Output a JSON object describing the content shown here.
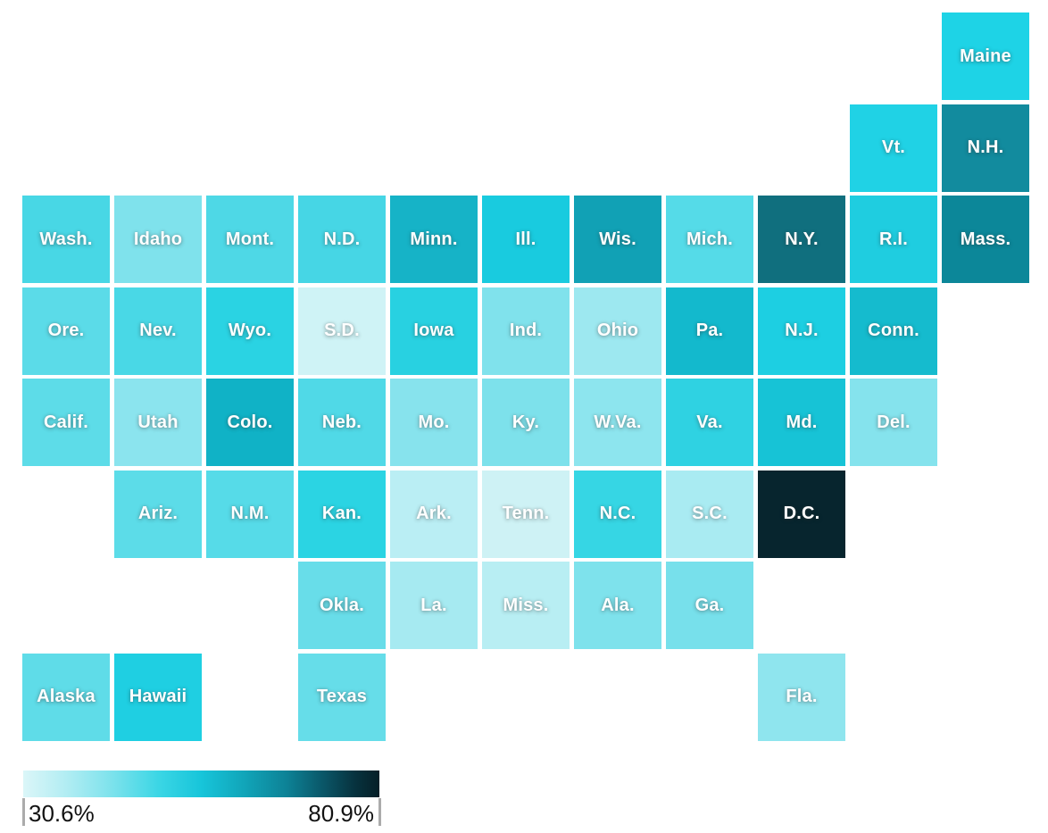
{
  "chart_data": {
    "type": "heatmap",
    "subtype": "us-state-tile-grid-map",
    "title": "",
    "value_encoding": "tile fill color encodes percentage from light (low) to dark (high)",
    "color_scale": {
      "min_label": "30.6%",
      "max_label": "80.9%",
      "gradient_stops": [
        {
          "pos": 0.0,
          "color": "#dbf6f8"
        },
        {
          "pos": 0.12,
          "color": "#b2edf3"
        },
        {
          "pos": 0.25,
          "color": "#7ce2ec"
        },
        {
          "pos": 0.38,
          "color": "#3bd6e5"
        },
        {
          "pos": 0.5,
          "color": "#17c5da"
        },
        {
          "pos": 0.62,
          "color": "#11a5b9"
        },
        {
          "pos": 0.74,
          "color": "#0d8296"
        },
        {
          "pos": 0.85,
          "color": "#0a5364"
        },
        {
          "pos": 0.93,
          "color": "#07333f"
        },
        {
          "pos": 1.0,
          "color": "#051f27"
        }
      ]
    },
    "states": [
      {
        "label": "Maine",
        "row": 0,
        "col": 10,
        "color": "#1ed3e6"
      },
      {
        "label": "Vt.",
        "row": 1,
        "col": 9,
        "color": "#20d2e5"
      },
      {
        "label": "N.H.",
        "row": 1,
        "col": 10,
        "color": "#128b9e"
      },
      {
        "label": "Wash.",
        "row": 2,
        "col": 0,
        "color": "#48d7e5"
      },
      {
        "label": "Idaho",
        "row": 2,
        "col": 1,
        "color": "#7fe2ec"
      },
      {
        "label": "Mont.",
        "row": 2,
        "col": 2,
        "color": "#4ed8e6"
      },
      {
        "label": "N.D.",
        "row": 2,
        "col": 3,
        "color": "#46d6e5"
      },
      {
        "label": "Minn.",
        "row": 2,
        "col": 4,
        "color": "#16b3c7"
      },
      {
        "label": "Ill.",
        "row": 2,
        "col": 5,
        "color": "#19cbdf"
      },
      {
        "label": "Wis.",
        "row": 2,
        "col": 6,
        "color": "#11a1b5"
      },
      {
        "label": "Mich.",
        "row": 2,
        "col": 7,
        "color": "#55dbe8"
      },
      {
        "label": "N.Y.",
        "row": 2,
        "col": 8,
        "color": "#106f7e"
      },
      {
        "label": "R.I.",
        "row": 2,
        "col": 9,
        "color": "#1fcde0"
      },
      {
        "label": "Mass.",
        "row": 2,
        "col": 10,
        "color": "#0c8799"
      },
      {
        "label": "Ore.",
        "row": 3,
        "col": 0,
        "color": "#5bdbe8"
      },
      {
        "label": "Nev.",
        "row": 3,
        "col": 1,
        "color": "#49d8e6"
      },
      {
        "label": "Wyo.",
        "row": 3,
        "col": 2,
        "color": "#2ad3e3"
      },
      {
        "label": "S.D.",
        "row": 3,
        "col": 3,
        "color": "#cff3f6"
      },
      {
        "label": "Iowa",
        "row": 3,
        "col": 4,
        "color": "#28d1e1"
      },
      {
        "label": "Ind.",
        "row": 3,
        "col": 5,
        "color": "#80e2ec"
      },
      {
        "label": "Ohio",
        "row": 3,
        "col": 6,
        "color": "#9de8f0"
      },
      {
        "label": "Pa.",
        "row": 3,
        "col": 7,
        "color": "#13b9cd"
      },
      {
        "label": "N.J.",
        "row": 3,
        "col": 8,
        "color": "#1dcfe2"
      },
      {
        "label": "Conn.",
        "row": 3,
        "col": 9,
        "color": "#15bbce"
      },
      {
        "label": "Calif.",
        "row": 4,
        "col": 0,
        "color": "#5ddce8"
      },
      {
        "label": "Utah",
        "row": 4,
        "col": 1,
        "color": "#8be4ee"
      },
      {
        "label": "Colo.",
        "row": 4,
        "col": 2,
        "color": "#10b2c6"
      },
      {
        "label": "Neb.",
        "row": 4,
        "col": 3,
        "color": "#50d9e7"
      },
      {
        "label": "Mo.",
        "row": 4,
        "col": 4,
        "color": "#87e3ed"
      },
      {
        "label": "Ky.",
        "row": 4,
        "col": 5,
        "color": "#7de1eb"
      },
      {
        "label": "W.Va.",
        "row": 4,
        "col": 6,
        "color": "#8de5ee"
      },
      {
        "label": "Va.",
        "row": 4,
        "col": 7,
        "color": "#2fd2e2"
      },
      {
        "label": "Md.",
        "row": 4,
        "col": 8,
        "color": "#17c3d6"
      },
      {
        "label": "Del.",
        "row": 4,
        "col": 9,
        "color": "#85e3ed"
      },
      {
        "label": "Ariz.",
        "row": 5,
        "col": 1,
        "color": "#5cdce8"
      },
      {
        "label": "N.M.",
        "row": 5,
        "col": 2,
        "color": "#56dbe8"
      },
      {
        "label": "Kan.",
        "row": 5,
        "col": 3,
        "color": "#2bd4e3"
      },
      {
        "label": "Ark.",
        "row": 5,
        "col": 4,
        "color": "#baeef4"
      },
      {
        "label": "Tenn.",
        "row": 5,
        "col": 5,
        "color": "#cef2f5"
      },
      {
        "label": "N.C.",
        "row": 5,
        "col": 6,
        "color": "#36d6e4"
      },
      {
        "label": "S.C.",
        "row": 5,
        "col": 7,
        "color": "#a9ebf2"
      },
      {
        "label": "D.C.",
        "row": 5,
        "col": 8,
        "color": "#07252e"
      },
      {
        "label": "Okla.",
        "row": 6,
        "col": 3,
        "color": "#68dde9"
      },
      {
        "label": "La.",
        "row": 6,
        "col": 4,
        "color": "#a6eaf1"
      },
      {
        "label": "Miss.",
        "row": 6,
        "col": 5,
        "color": "#b8eef3"
      },
      {
        "label": "Ala.",
        "row": 6,
        "col": 6,
        "color": "#7ee2ec"
      },
      {
        "label": "Ga.",
        "row": 6,
        "col": 7,
        "color": "#77e0eb"
      },
      {
        "label": "Alaska",
        "row": 7,
        "col": 0,
        "color": "#5fdce8"
      },
      {
        "label": "Hawaii",
        "row": 7,
        "col": 1,
        "color": "#1fcfe2"
      },
      {
        "label": "Texas",
        "row": 7,
        "col": 3,
        "color": "#66dde9"
      },
      {
        "label": "Fla.",
        "row": 7,
        "col": 8,
        "color": "#8fe5ee"
      }
    ]
  },
  "legend": {
    "tick_color": "#ababab",
    "label_color": "#121212"
  }
}
